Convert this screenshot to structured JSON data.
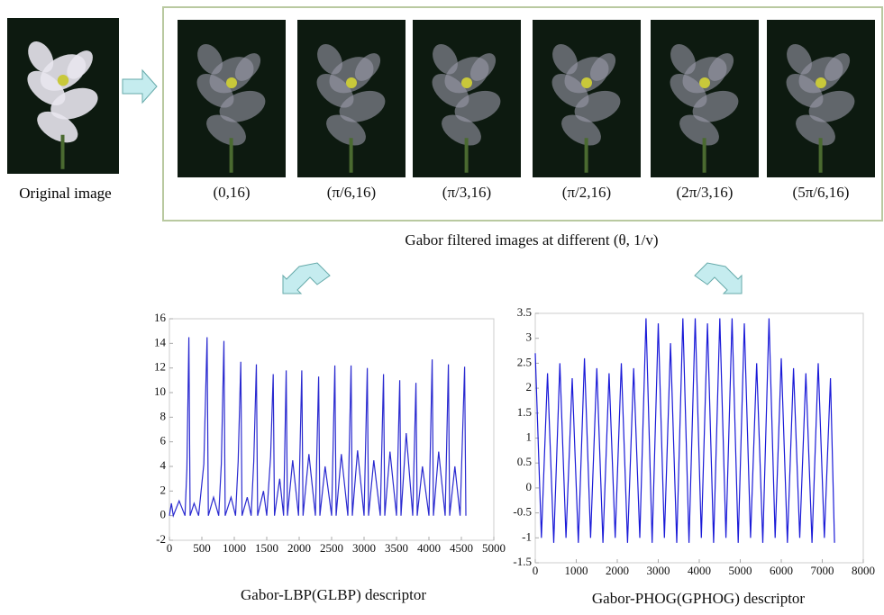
{
  "original_label": "Original image",
  "filtered": {
    "labels": [
      "(0,16)",
      "(π/6,16)",
      "(π/3,16)",
      "(π/2,16)",
      "(2π/3,16)",
      "(5π/6,16)"
    ],
    "caption": "Gabor filtered images at different (θ, 1/v)"
  },
  "chart_data": [
    {
      "type": "line",
      "caption": "Gabor-LBP(GLBP) descriptor",
      "xlim": [
        0,
        5000
      ],
      "xticks": [
        0,
        500,
        1000,
        1500,
        2000,
        2500,
        3000,
        3500,
        4000,
        4500,
        5000
      ],
      "ylim": [
        -2,
        16
      ],
      "yticks": [
        -2,
        0,
        2,
        4,
        6,
        8,
        10,
        12,
        14,
        16
      ],
      "series": [
        {
          "color": "#2a2ad0",
          "x": [
            0,
            30,
            60,
            150,
            240,
            270,
            300,
            320,
            380,
            450,
            530,
            580,
            600,
            680,
            760,
            800,
            840,
            860,
            950,
            1020,
            1060,
            1100,
            1120,
            1200,
            1260,
            1300,
            1340,
            1360,
            1450,
            1500,
            1560,
            1600,
            1620,
            1700,
            1760,
            1800,
            1820,
            1900,
            1990,
            2040,
            2060,
            2150,
            2250,
            2300,
            2320,
            2400,
            2500,
            2550,
            2570,
            2650,
            2750,
            2800,
            2820,
            2900,
            3000,
            3050,
            3070,
            3150,
            3250,
            3300,
            3320,
            3400,
            3500,
            3550,
            3570,
            3650,
            3750,
            3800,
            3820,
            3900,
            4000,
            4050,
            4070,
            4150,
            4250,
            4300,
            4320,
            4400,
            4480,
            4550,
            4570
          ],
          "values": [
            0,
            1,
            0,
            1.2,
            0,
            3.8,
            14.5,
            0,
            1,
            0,
            4.2,
            14.5,
            0,
            1.5,
            0,
            4.2,
            14.2,
            0,
            1.5,
            0,
            4.4,
            12.5,
            0,
            1.5,
            0,
            4.4,
            12.3,
            0,
            2,
            0,
            4.8,
            11.5,
            0,
            3,
            0,
            11.8,
            0,
            4.5,
            0,
            11.8,
            0,
            5,
            0,
            11.3,
            0,
            4,
            0,
            12.2,
            0,
            5,
            0,
            12.2,
            0,
            5.3,
            0,
            12,
            0,
            4.5,
            0,
            11.5,
            0,
            5.2,
            0,
            11,
            0,
            6.7,
            0,
            10.8,
            0,
            4,
            0,
            12.7,
            0,
            5.2,
            0,
            12.3,
            0,
            4,
            0,
            12.1,
            0
          ]
        }
      ]
    },
    {
      "type": "line",
      "caption": "Gabor-PHOG(GPHOG) descriptor",
      "xlim": [
        0,
        8000
      ],
      "xticks": [
        0,
        1000,
        2000,
        3000,
        4000,
        5000,
        6000,
        7000,
        8000
      ],
      "ylim": [
        -1.5,
        3.5
      ],
      "yticks": [
        -1.5,
        -1,
        -0.5,
        0,
        0.5,
        1,
        1.5,
        2,
        2.5,
        3,
        3.5
      ],
      "series": [
        {
          "color": "#1a1ad8",
          "x": [
            0,
            150,
            300,
            450,
            600,
            750,
            900,
            1050,
            1200,
            1350,
            1500,
            1650,
            1800,
            1950,
            2100,
            2250,
            2400,
            2550,
            2700,
            2850,
            3000,
            3150,
            3300,
            3450,
            3600,
            3750,
            3900,
            4050,
            4200,
            4350,
            4500,
            4650,
            4800,
            4950,
            5100,
            5250,
            5400,
            5550,
            5700,
            5850,
            6000,
            6150,
            6300,
            6450,
            6600,
            6750,
            6900,
            7050,
            7200,
            7300
          ],
          "values": [
            2.7,
            -1.0,
            2.3,
            -1.1,
            2.5,
            -1.0,
            2.2,
            -1.1,
            2.6,
            -1.0,
            2.4,
            -1.1,
            2.3,
            -1.0,
            2.5,
            -1.1,
            2.4,
            -1.0,
            3.4,
            -1.1,
            3.3,
            -1.0,
            2.9,
            -1.1,
            3.4,
            -1.1,
            3.4,
            -1.0,
            3.3,
            -1.1,
            3.4,
            -1.0,
            3.4,
            -1.1,
            3.3,
            -1.0,
            2.5,
            -1.1,
            3.4,
            -1.0,
            2.6,
            -1.1,
            2.4,
            -1.0,
            2.3,
            -1.1,
            2.5,
            -1.0,
            2.2,
            -1.1
          ]
        }
      ]
    }
  ]
}
